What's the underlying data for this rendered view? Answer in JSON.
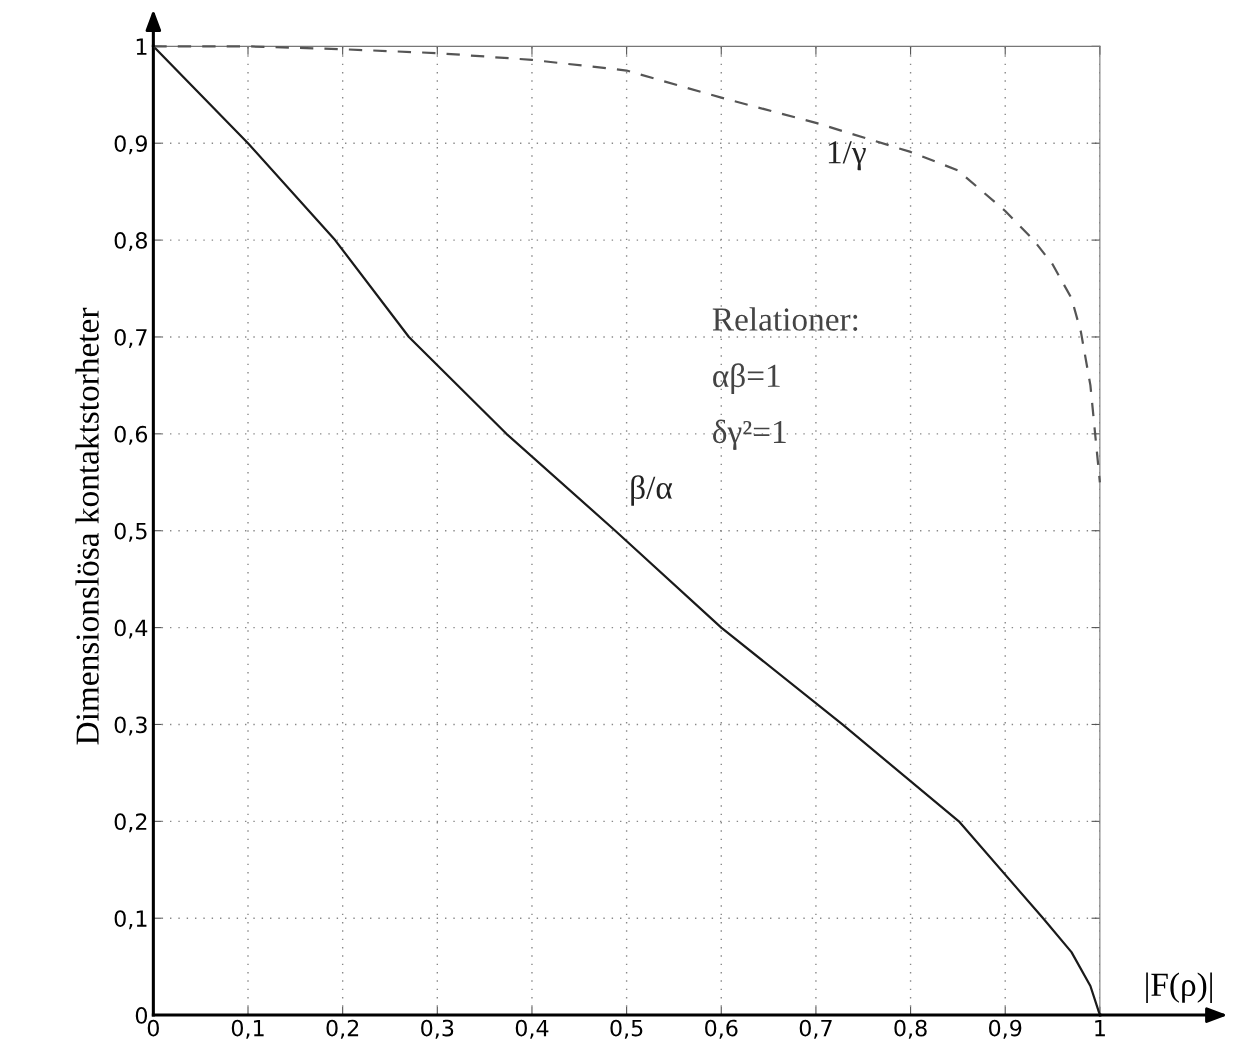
{
  "chart_data": {
    "type": "line",
    "xlabel": "|F(ρ)|",
    "ylabel": "Dimensionslösa kontaktstorheter",
    "xlim": [
      0,
      1
    ],
    "ylim": [
      0,
      1
    ],
    "xticks": [
      0,
      {
        "value": 0.1,
        "label": "0,1"
      },
      {
        "value": 0.2,
        "label": "0,2"
      },
      {
        "value": 0.3,
        "label": "0,3"
      },
      {
        "value": 0.4,
        "label": "0,4"
      },
      {
        "value": 0.5,
        "label": "0,5"
      },
      {
        "value": 0.6,
        "label": "0,6"
      },
      {
        "value": 0.7,
        "label": "0,7"
      },
      {
        "value": 0.8,
        "label": "0,8"
      },
      {
        "value": 0.9,
        "label": "0,9"
      },
      1
    ],
    "yticks": [
      0,
      {
        "value": 0.1,
        "label": "0,1"
      },
      {
        "value": 0.2,
        "label": "0,2"
      },
      {
        "value": 0.3,
        "label": "0,3"
      },
      {
        "value": 0.4,
        "label": "0,4"
      },
      {
        "value": 0.5,
        "label": "0,5"
      },
      {
        "value": 0.6,
        "label": "0,6"
      },
      {
        "value": 0.7,
        "label": "0,7"
      },
      {
        "value": 0.8,
        "label": "0,8"
      },
      {
        "value": 0.9,
        "label": "0,9"
      },
      1
    ],
    "grid": true,
    "marker": "none",
    "series": [
      {
        "name": "β/α",
        "color": "#1a1a1a",
        "line_style": "solid",
        "x": [
          0,
          0.1,
          0.192,
          0.27,
          0.373,
          0.488,
          0.6,
          0.728,
          0.851,
          0.94,
          0.97,
          0.99,
          1
        ],
        "values": [
          1,
          0.9,
          0.8,
          0.7,
          0.6,
          0.5,
          0.4,
          0.3,
          0.2,
          0.1,
          0.065,
          0.03,
          0
        ]
      },
      {
        "name": "1/γ",
        "color": "#555555",
        "line_style": "dashed",
        "x": [
          0,
          0.1,
          0.2,
          0.3,
          0.4,
          0.5,
          0.6,
          0.7,
          0.8,
          0.85,
          0.9,
          0.93,
          0.95,
          0.97,
          0.98,
          0.99,
          1
        ],
        "values": [
          1,
          1,
          0.997,
          0.993,
          0.986,
          0.975,
          0.947,
          0.921,
          0.891,
          0.872,
          0.83,
          0.8,
          0.775,
          0.74,
          0.705,
          0.65,
          0.55
        ]
      }
    ],
    "annotations": [
      "Relationer:",
      "αβ=1",
      "δγ²=1"
    ]
  }
}
